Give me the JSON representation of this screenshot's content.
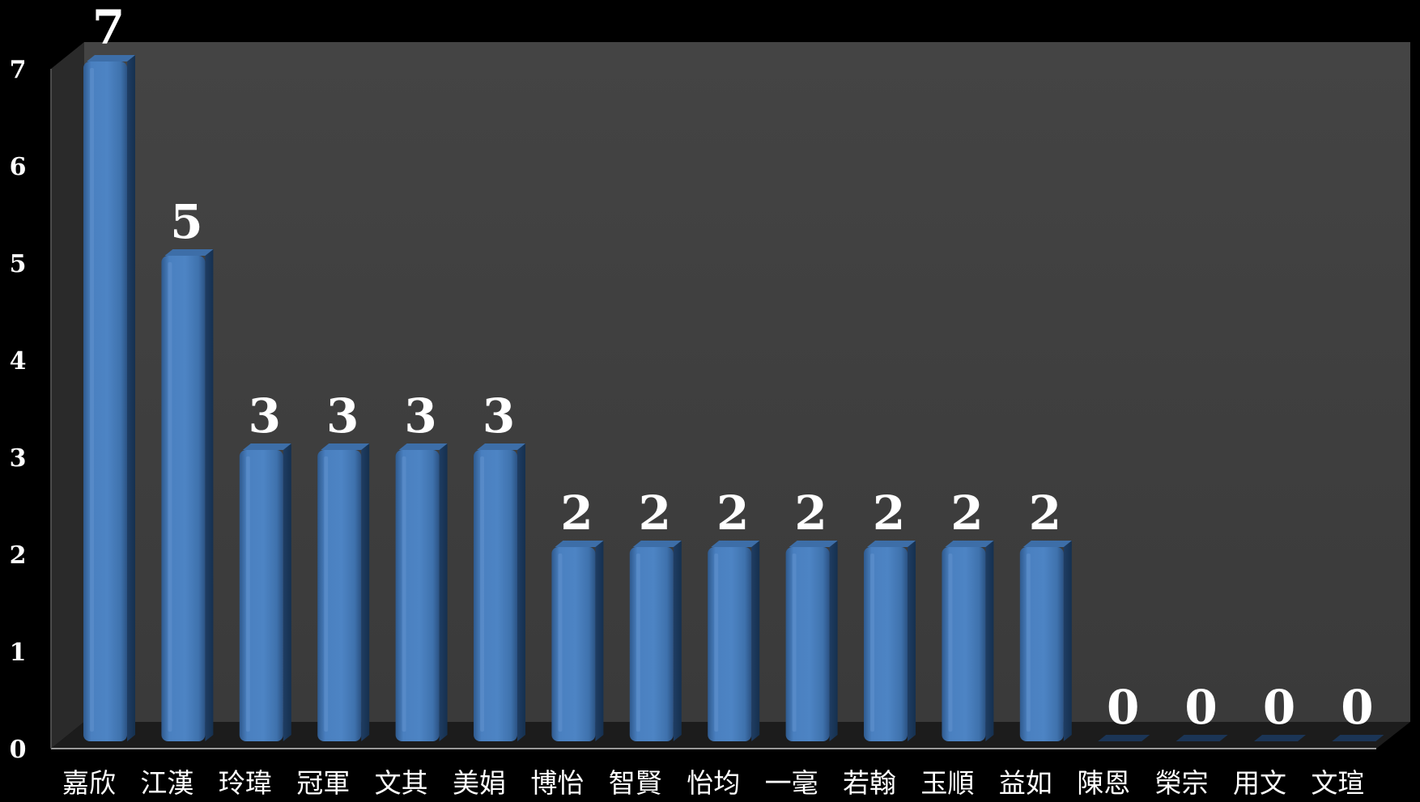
{
  "chart_data": {
    "type": "bar",
    "title": "",
    "xlabel": "",
    "ylabel": "",
    "categories": [
      "嘉欣",
      "江漢",
      "玲瑋",
      "冠軍",
      "文其",
      "美娟",
      "博怡",
      "智賢",
      "怡均",
      "一毫",
      "若翰",
      "玉順",
      "益如",
      "陳恩",
      "榮宗",
      "用文",
      "文瑄"
    ],
    "values": [
      7,
      5,
      3,
      3,
      3,
      3,
      2,
      2,
      2,
      2,
      2,
      2,
      2,
      0,
      0,
      0,
      0
    ],
    "ylim": [
      0,
      7
    ],
    "yticks": [
      "0",
      "1",
      "2",
      "3",
      "4",
      "5",
      "6",
      "7"
    ],
    "data_labels": [
      "7",
      "5",
      "3",
      "3",
      "3",
      "3",
      "2",
      "2",
      "2",
      "2",
      "2",
      "2",
      "2",
      "0",
      "0",
      "0",
      "0"
    ],
    "grid": false,
    "legend": "none",
    "style": "3d-column"
  },
  "colors": {
    "background": "#000000",
    "plot_back_wall": "#404040",
    "plot_side_wall": "#2a2a2a",
    "plot_floor": "#1c1c1c",
    "bar_front": "#4a7fbf",
    "bar_side": "#22426b",
    "bar_top": "#3d6ea8",
    "label_text": "#ffffff"
  }
}
